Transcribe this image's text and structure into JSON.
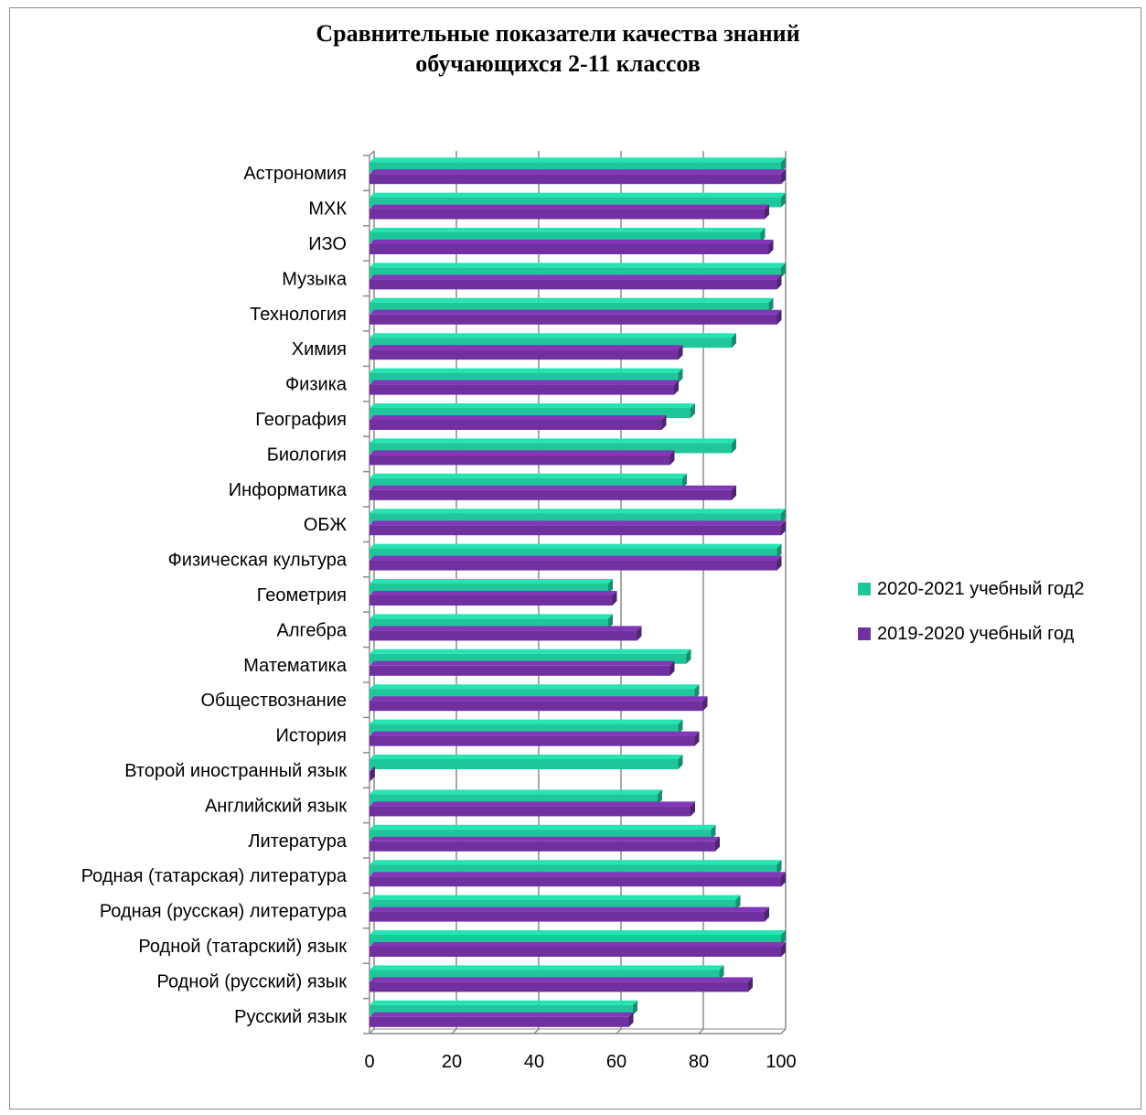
{
  "chart_data": {
    "type": "bar",
    "orientation": "horizontal",
    "title_lines": [
      "Сравнительные показатели качества знаний",
      "обучающихся 2-11 классов"
    ],
    "xlim": [
      0,
      100
    ],
    "xticks": [
      "0",
      "20",
      "40",
      "60",
      "80",
      "100"
    ],
    "grid": true,
    "legend_position": "right",
    "categories": [
      "Русский язык ",
      "Родной (русский) язык",
      "Родной (татарский) язык",
      "Родная (русская) литература",
      "Родная (татарская) литература",
      "Литература",
      "Английский язык",
      "Второй иностранный язык",
      "История",
      "Обществознание",
      "Математика",
      "Алгебра",
      "Геометрия",
      "Физическая культура",
      "ОБЖ",
      "Информатика ",
      "Биология",
      "География",
      "Физика",
      "Химия",
      "Технология",
      "Музыка",
      "ИЗО ",
      "МХК",
      "Астрономия"
    ],
    "series": [
      {
        "name": "2020-2021 учебный год2",
        "color": "#1fc69a",
        "values": [
          64,
          85,
          100,
          89,
          99,
          83,
          70,
          75,
          75,
          79,
          77,
          58,
          58,
          99,
          100,
          76,
          88,
          78,
          75,
          88,
          97,
          100,
          95,
          100,
          100
        ]
      },
      {
        "name": "2019-2020 учебный год",
        "color": "#7030a0",
        "values": [
          63,
          92,
          100,
          96,
          100,
          84,
          78,
          0,
          79,
          81,
          73,
          65,
          59,
          99,
          100,
          88,
          73,
          71,
          74,
          75,
          99,
          99,
          97,
          96,
          100
        ]
      }
    ]
  }
}
